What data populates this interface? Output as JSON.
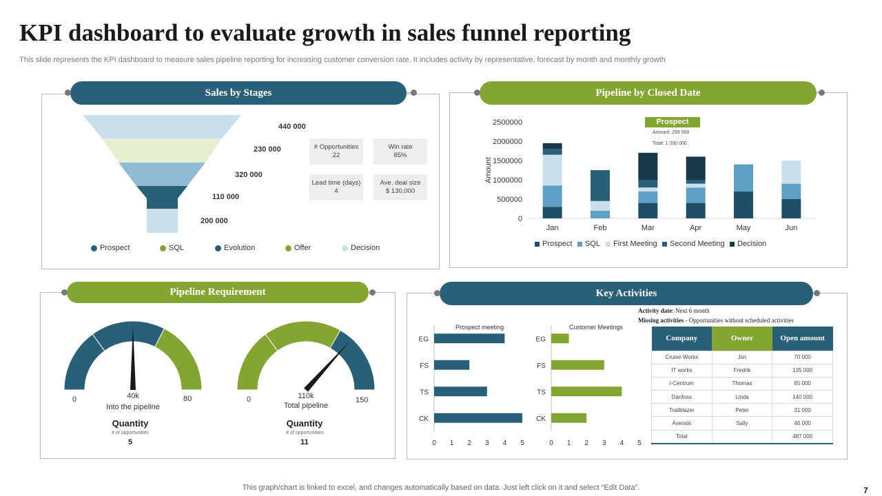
{
  "page": {
    "title": "KPI dashboard to evaluate growth in sales funnel reporting",
    "subtitle": "This slide represents the KPI dashboard to measure sales pipeline reporting for increasing customer conversion rate. It includes activity by representative, forecast by month and monthly growth",
    "footer": "This graph/chart is linked to excel,  and changes automatically based on data. Just left click on it and select “Edit Data”.",
    "page_number": "7"
  },
  "colors": {
    "navy": "#2a6077",
    "green": "#84a532",
    "dark": "#17394a",
    "mid": "#5ea1c4",
    "light": "#c9e0ec"
  },
  "sales_by_stages": {
    "header": "Sales by Stages",
    "stats": [
      {
        "label": "# Opportunities",
        "value": "22"
      },
      {
        "label": "Win rate",
        "value": "85%"
      },
      {
        "label": "Lead time (days)",
        "value": "4"
      },
      {
        "label": "Ave. deal size",
        "value": "$ 130,000"
      }
    ]
  },
  "pipeline_requirement": {
    "header": "Pipeline Requirement",
    "gauges": [
      {
        "min_label": "0",
        "max_label": "80",
        "value_label": "40k",
        "caption": "Into the pipeline",
        "quantity_title": "Quantity",
        "quantity_sub": "# of opportunities",
        "quantity_value": "5"
      },
      {
        "min_label": "0",
        "max_label": "150",
        "value_label": "110k",
        "caption": "Total pipeline",
        "quantity_title": "Quantity",
        "quantity_sub": "# of opportunities",
        "quantity_value": "11"
      }
    ]
  },
  "key_activities": {
    "header": "Key Activities",
    "activity_date_label": "Activity date",
    "activity_date_value": ": Next 6 month",
    "missing_label": "Missing activities",
    "missing_value": " - Opportunities without scheduled activities",
    "table": {
      "headers": [
        "Company",
        "Owner",
        "Open amount"
      ],
      "rows": [
        [
          "Cruise Works",
          "Jon",
          "70 000"
        ],
        [
          "IT works",
          "Fredrik",
          "135 000"
        ],
        [
          "i-Centrum",
          "Thomas",
          "65 000"
        ],
        [
          "Danfoss",
          "Linda",
          "140 000"
        ],
        [
          "Trailblazer",
          "Peter",
          "31 000"
        ],
        [
          "Avensis",
          "Sally",
          "46 000"
        ],
        [
          "Total",
          "",
          "487 000"
        ]
      ]
    }
  },
  "chart_data": [
    {
      "id": "funnel",
      "type": "funnel",
      "title": "Sales by Stages",
      "categories": [
        "Prospect",
        "SQL",
        "Evolution",
        "Offer",
        "Decision"
      ],
      "labels": [
        "440 000",
        "230 000",
        "320 000",
        "110 000",
        "200 000"
      ],
      "values": [
        440000,
        230000,
        320000,
        110000,
        200000
      ],
      "legend_colors": [
        "#2a6077",
        "#84a532",
        "#2a6077",
        "#84a532",
        "#c9e0ec"
      ]
    },
    {
      "id": "stacked",
      "type": "bar",
      "stacked": true,
      "title": "Pipeline by Closed Date",
      "categories": [
        "Jan",
        "Feb",
        "Mar",
        "Apr",
        "May",
        "Jun"
      ],
      "ylabel": "Amount",
      "ylim": [
        0,
        2500000
      ],
      "yticks": [
        "0",
        "500000",
        "1000000",
        "1500000",
        "2000000",
        "2500000"
      ],
      "series": [
        {
          "name": "Prospect",
          "color": "#1f4f66",
          "values": [
            300000,
            0,
            400000,
            400000,
            700000,
            500000
          ]
        },
        {
          "name": "SQL",
          "color": "#5ea1c4",
          "values": [
            550000,
            200000,
            300000,
            400000,
            700000,
            400000
          ]
        },
        {
          "name": "First Meeting",
          "color": "#c9e0ec",
          "values": [
            800000,
            250000,
            100000,
            100000,
            0,
            600000
          ]
        },
        {
          "name": "Second Meeting",
          "color": "#2a6077",
          "values": [
            150000,
            800000,
            200000,
            100000,
            0,
            0
          ]
        },
        {
          "name": "Decision",
          "color": "#17394a",
          "values": [
            150000,
            0,
            700000,
            600000,
            0,
            0
          ]
        }
      ],
      "tooltip": {
        "title": "Prospect",
        "line1": "Amount: 299 000",
        "line2": "Total: 1 200 000"
      }
    },
    {
      "id": "gauge1",
      "type": "gauge",
      "min": 0,
      "max": 80,
      "value": 40,
      "segments": [
        {
          "to": 24,
          "color": "#2a6077"
        },
        {
          "to": 52,
          "color": "#2a6077"
        },
        {
          "to": 80,
          "color": "#84a532"
        }
      ]
    },
    {
      "id": "gauge2",
      "type": "gauge",
      "min": 0,
      "max": 150,
      "value": 110,
      "segments": [
        {
          "to": 45,
          "color": "#84a532"
        },
        {
          "to": 100,
          "color": "#84a532"
        },
        {
          "to": 150,
          "color": "#2a6077"
        }
      ]
    },
    {
      "id": "prospect_meeting",
      "type": "bar",
      "orientation": "horizontal",
      "title": "Prospect meeting",
      "categories": [
        "EG",
        "FS",
        "TS",
        "CK"
      ],
      "values": [
        4,
        2,
        3,
        5
      ],
      "xlim": [
        0,
        5
      ],
      "xticks": [
        "0",
        "1",
        "2",
        "3",
        "4",
        "5"
      ],
      "color": "#2a6077"
    },
    {
      "id": "customer_meetings",
      "type": "bar",
      "orientation": "horizontal",
      "title": "Customer Meetings",
      "categories": [
        "EG",
        "FS",
        "TS",
        "CK"
      ],
      "values": [
        1,
        3,
        4,
        2
      ],
      "xlim": [
        0,
        5
      ],
      "xticks": [
        "0",
        "1",
        "2",
        "3",
        "4",
        "5"
      ],
      "color": "#84a532"
    }
  ]
}
